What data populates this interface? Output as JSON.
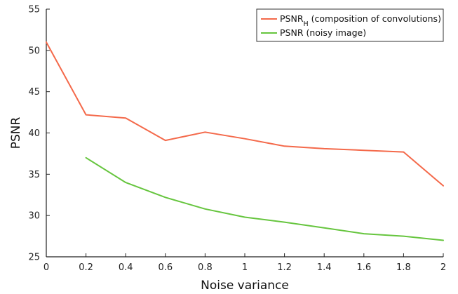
{
  "chart_data": {
    "type": "line",
    "xlabel": "Noise variance",
    "ylabel": "PSNR",
    "xlim": [
      0,
      2
    ],
    "ylim": [
      25,
      55
    ],
    "xticks": [
      0,
      0.2,
      0.4,
      0.6,
      0.8,
      1,
      1.2,
      1.4,
      1.6,
      1.8,
      2
    ],
    "yticks": [
      25,
      30,
      35,
      40,
      45,
      50,
      55
    ],
    "grid": false,
    "legend_position": "top-right",
    "series": [
      {
        "name_main": "PSNR",
        "name_sub": "H",
        "name_rest": " (composition of convolutions)",
        "color": "#f4694a",
        "x": [
          0,
          0.2,
          0.4,
          0.6,
          0.8,
          1,
          1.2,
          1.4,
          1.6,
          1.8,
          2
        ],
        "y": [
          51.0,
          42.2,
          41.8,
          39.1,
          40.1,
          39.3,
          38.4,
          38.1,
          37.9,
          37.7,
          33.6
        ]
      },
      {
        "name": "PSNR (noisy image)",
        "color": "#66c53e",
        "x": [
          0.2,
          0.4,
          0.6,
          0.8,
          1,
          1.2,
          1.4,
          1.6,
          1.8,
          2
        ],
        "y": [
          37.0,
          34.0,
          32.2,
          30.8,
          29.8,
          29.2,
          28.5,
          27.8,
          27.5,
          27.0
        ]
      }
    ]
  }
}
